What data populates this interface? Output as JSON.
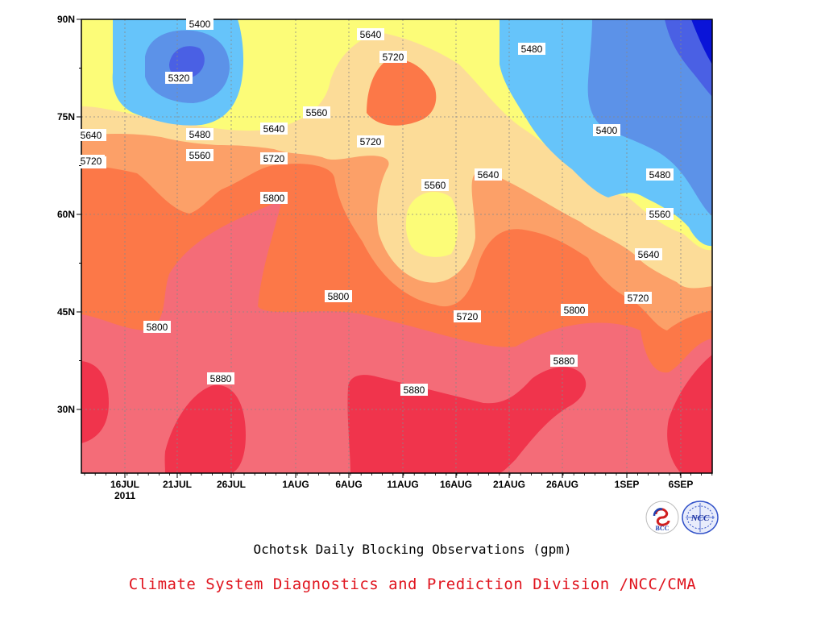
{
  "chart_data": {
    "type": "contour",
    "title": "Ochotsk Daily Blocking Observations (gpm)",
    "x_ticks": [
      "16JUL",
      "21JUL",
      "26JUL",
      "1AUG",
      "6AUG",
      "11AUG",
      "16AUG",
      "21AUG",
      "26AUG",
      "1SEP",
      "6SEP"
    ],
    "x_year_label": "2011",
    "y_ticks": [
      "90N",
      "75N",
      "60N",
      "45N",
      "30N"
    ],
    "x_range": [
      "2011-07-11",
      "2011-09-09"
    ],
    "y_range": [
      20,
      90
    ],
    "contour_levels": [
      5320,
      5400,
      5480,
      5560,
      5640,
      5720,
      5800,
      5880
    ],
    "contour_labels": [
      "5400",
      "5320",
      "5480",
      "5560",
      "5640",
      "5720",
      "5640",
      "5560",
      "5640",
      "5720",
      "5720",
      "5720",
      "5800",
      "5800",
      "5800",
      "5880",
      "5880",
      "5880",
      "5640",
      "5480",
      "5400",
      "5480",
      "5560",
      "5640",
      "5720",
      "5720",
      "5800",
      "5560",
      "5720",
      "5640"
    ],
    "colors": {
      "lt5320": "#0a14d8",
      "5320-5400": "#4a60e4",
      "5400-5480": "#5c92e8",
      "5480-5560": "#66c4fa",
      "5560-5640": "#fcfc78",
      "5640-5720": "#fcdc98",
      "5720-5800": "#fca068",
      "5800-5880": "#fc7848",
      "5880-5960": "#f46c78",
      "gt5880": "#f0344c"
    }
  },
  "footer": {
    "title": "Ochotsk Daily Blocking Observations (gpm)",
    "credit": "Climate System Diagnostics and Prediction Division /NCC/CMA"
  },
  "logos": {
    "bcc": "BCC",
    "ncc": "NCC"
  }
}
